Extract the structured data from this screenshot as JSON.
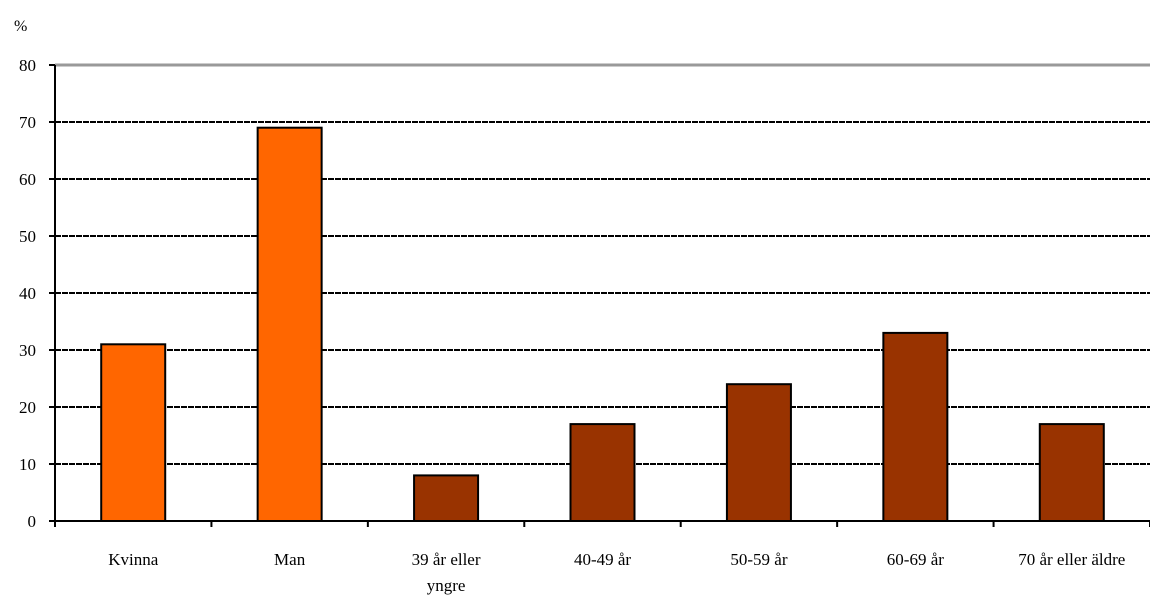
{
  "chart_data": {
    "type": "bar",
    "ylabel": "%",
    "ylim": [
      0,
      80
    ],
    "yticks": [
      0,
      10,
      20,
      30,
      40,
      50,
      60,
      70,
      80
    ],
    "grid": true,
    "categories": [
      [
        "Kvinna"
      ],
      [
        "Man"
      ],
      [
        "39 år eller",
        "yngre"
      ],
      [
        "40-49 år"
      ],
      [
        "50-59 år"
      ],
      [
        "60-69 år"
      ],
      [
        "70 år eller äldre"
      ]
    ],
    "values": [
      31,
      69,
      8,
      17,
      24,
      33,
      17
    ],
    "colors": {
      "gender": "#ff6600",
      "age": "#993300",
      "outline": "#000000",
      "grid": "#000000",
      "plot_top_border": "#999999"
    },
    "bar_groups": [
      "gender",
      "gender",
      "age",
      "age",
      "age",
      "age",
      "age"
    ]
  }
}
